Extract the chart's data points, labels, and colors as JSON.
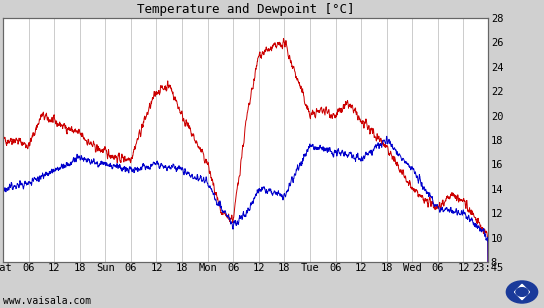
{
  "title": "Temperature and Dewpoint [°C]",
  "ylabel_right_ticks": [
    8,
    10,
    12,
    14,
    16,
    18,
    20,
    22,
    24,
    26,
    28
  ],
  "ylim": [
    8,
    28
  ],
  "x_tick_labels": [
    "Sat",
    "06",
    "12",
    "18",
    "Sun",
    "06",
    "12",
    "18",
    "Mon",
    "06",
    "12",
    "18",
    "Tue",
    "06",
    "12",
    "18",
    "Wed",
    "06",
    "12",
    "23:45"
  ],
  "x_tick_positions": [
    0,
    6,
    12,
    18,
    24,
    30,
    36,
    42,
    48,
    54,
    60,
    66,
    72,
    78,
    84,
    90,
    96,
    102,
    108,
    113.75
  ],
  "xlim": [
    0,
    113.75
  ],
  "bg_color": "#d0d0d0",
  "plot_bg_color": "#ffffff",
  "temp_color": "#cc0000",
  "dewpoint_color": "#0000cc",
  "grid_color": "#b8b8b8",
  "watermark": "www.vaisala.com",
  "title_fontsize": 9,
  "tick_fontsize": 7.5,
  "watermark_fontsize": 7
}
